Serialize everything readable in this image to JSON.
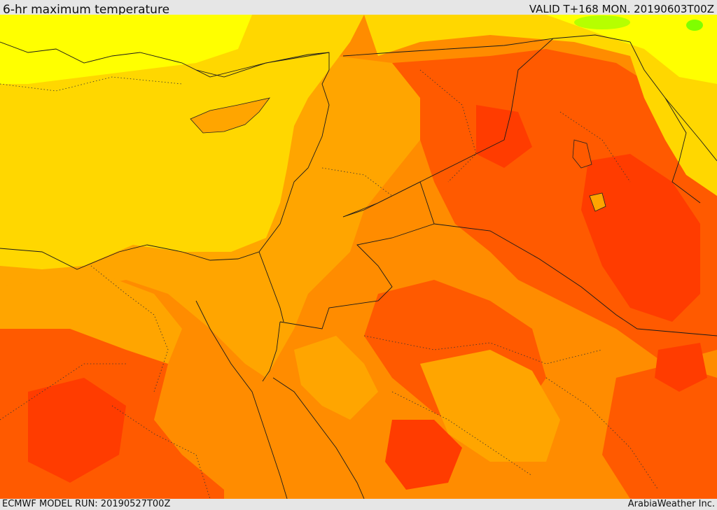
{
  "header": {
    "title": "6-hr maximum temperature",
    "valid": "VALID T+168 MON. 20190603T00Z"
  },
  "footer": {
    "model_run": "ECMWF MODEL RUN: 20190527T00Z",
    "credit": "ArabiaWeather Inc."
  },
  "colors": {
    "light_yellow": "#ffff00",
    "yellow": "#ffd700",
    "orange_light": "#ffa500",
    "orange": "#ff8c00",
    "red_orange": "#ff5a00",
    "red": "#ff3c00",
    "green_hint": "#7fff00"
  }
}
